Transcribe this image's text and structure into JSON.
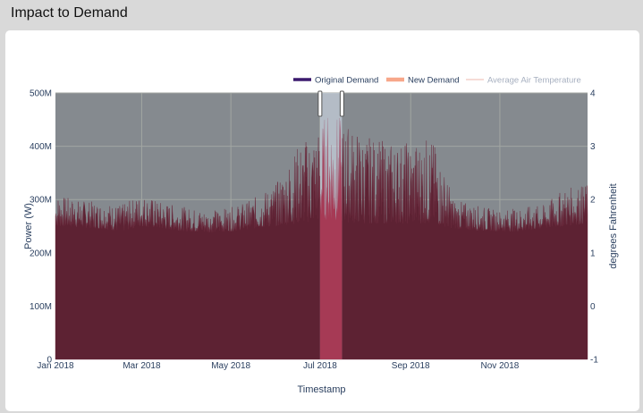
{
  "header": {
    "title": "Impact to Demand"
  },
  "chart_data": {
    "type": "area",
    "title": "Impact to Demand",
    "xlabel": "Timestamp",
    "ylabel": "Power (W)",
    "y2label": "degrees Fahrenheit",
    "x_range": [
      "2018-01-01",
      "2018-12-31"
    ],
    "ylim": [
      0,
      500000000
    ],
    "y2lim": [
      -1,
      4
    ],
    "x_ticks": [
      "Jan 2018",
      "Mar 2018",
      "May 2018",
      "Jul 2018",
      "Sep 2018",
      "Nov 2018"
    ],
    "y_ticks": [
      "0",
      "100M",
      "200M",
      "300M",
      "400M",
      "500M"
    ],
    "y2_ticks": [
      "-1",
      "0",
      "1",
      "2",
      "3",
      "4"
    ],
    "grid": true,
    "legend_position": "top-right",
    "highlight_range": [
      "2018-07-01",
      "2018-07-16"
    ],
    "series": [
      {
        "name": "Original Demand",
        "color": "#3b1a6e",
        "x": [
          "2018-01-01",
          "2018-01-15",
          "2018-02-01",
          "2018-02-15",
          "2018-03-01",
          "2018-03-15",
          "2018-04-01",
          "2018-04-15",
          "2018-05-01",
          "2018-05-15",
          "2018-06-01",
          "2018-06-15",
          "2018-07-01",
          "2018-07-08",
          "2018-07-16",
          "2018-08-01",
          "2018-08-15",
          "2018-09-01",
          "2018-09-15",
          "2018-10-01",
          "2018-10-15",
          "2018-11-01",
          "2018-11-15",
          "2018-12-01",
          "2018-12-15",
          "2018-12-31"
        ],
        "values_max": [
          310000000,
          300000000,
          295000000,
          290000000,
          310000000,
          295000000,
          285000000,
          280000000,
          285000000,
          300000000,
          330000000,
          400000000,
          440000000,
          480000000,
          450000000,
          420000000,
          410000000,
          410000000,
          420000000,
          300000000,
          290000000,
          280000000,
          285000000,
          290000000,
          320000000,
          330000000
        ],
        "values_base": [
          250000000,
          248000000,
          245000000,
          240000000,
          250000000,
          245000000,
          240000000,
          238000000,
          240000000,
          245000000,
          250000000,
          255000000,
          260000000,
          262000000,
          258000000,
          255000000,
          255000000,
          255000000,
          255000000,
          245000000,
          242000000,
          240000000,
          240000000,
          245000000,
          250000000,
          255000000
        ]
      },
      {
        "name": "New Demand",
        "color": "#f7a78a"
      },
      {
        "name": "Average Air Temperature",
        "color": "#f3d0c9"
      }
    ]
  }
}
